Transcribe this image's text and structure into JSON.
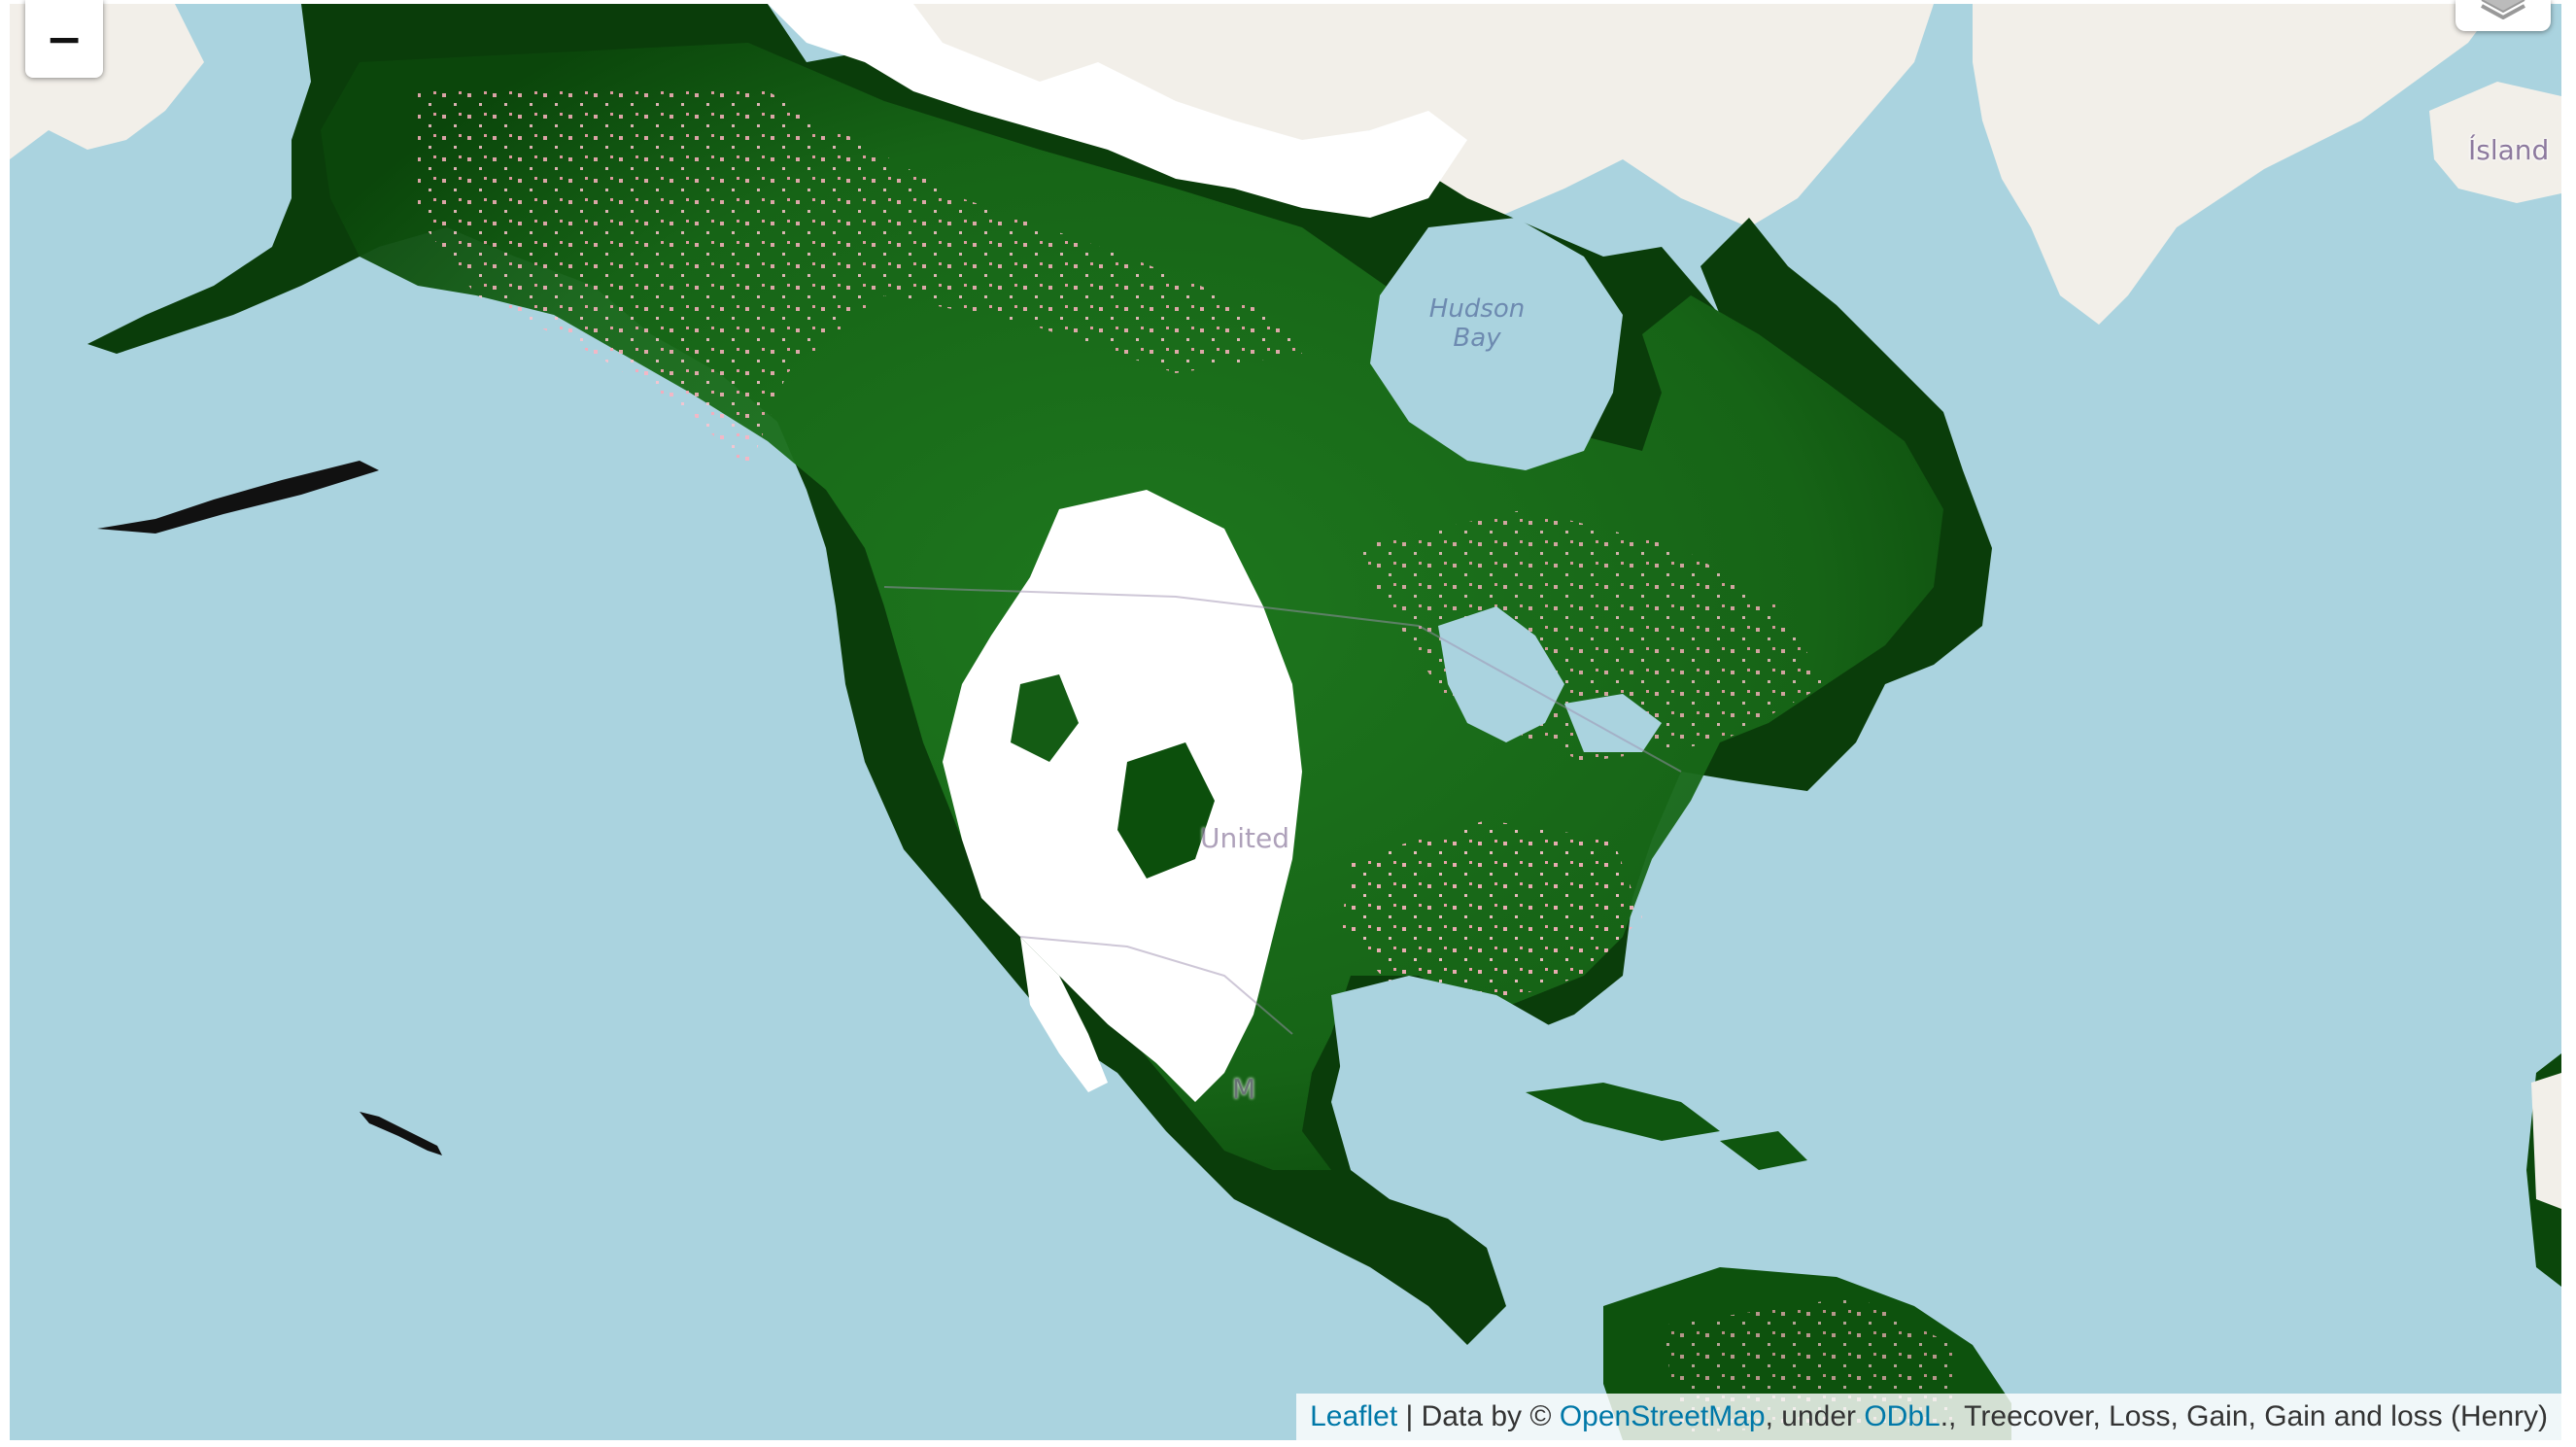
{
  "map": {
    "zoom_out_label": "−",
    "labels": {
      "hudson_bay": "Hudson\nBay",
      "island": "Ísland",
      "united": "United",
      "mexico_fragment": "M"
    },
    "attribution": {
      "leaflet": "Leaflet",
      "separator": " | Data by © ",
      "osm": "OpenStreetMap",
      "under": ", under ",
      "odbl": "ODbL",
      "layers": "., Treecover, Loss, Gain, Gain and loss (Henry)"
    },
    "layer_names": [
      "Treecover",
      "Loss",
      "Gain",
      "Gain and loss (Henry)"
    ],
    "colors": {
      "water": "#aad3df",
      "land": "#f2efe9",
      "treecover": "#1e7a1e",
      "dense_forest": "#063a06",
      "loss": "#ffb3c1",
      "link": "#0078a8"
    },
    "icons": {
      "zoom_out": "minus-icon",
      "layers": "layers-icon"
    }
  }
}
